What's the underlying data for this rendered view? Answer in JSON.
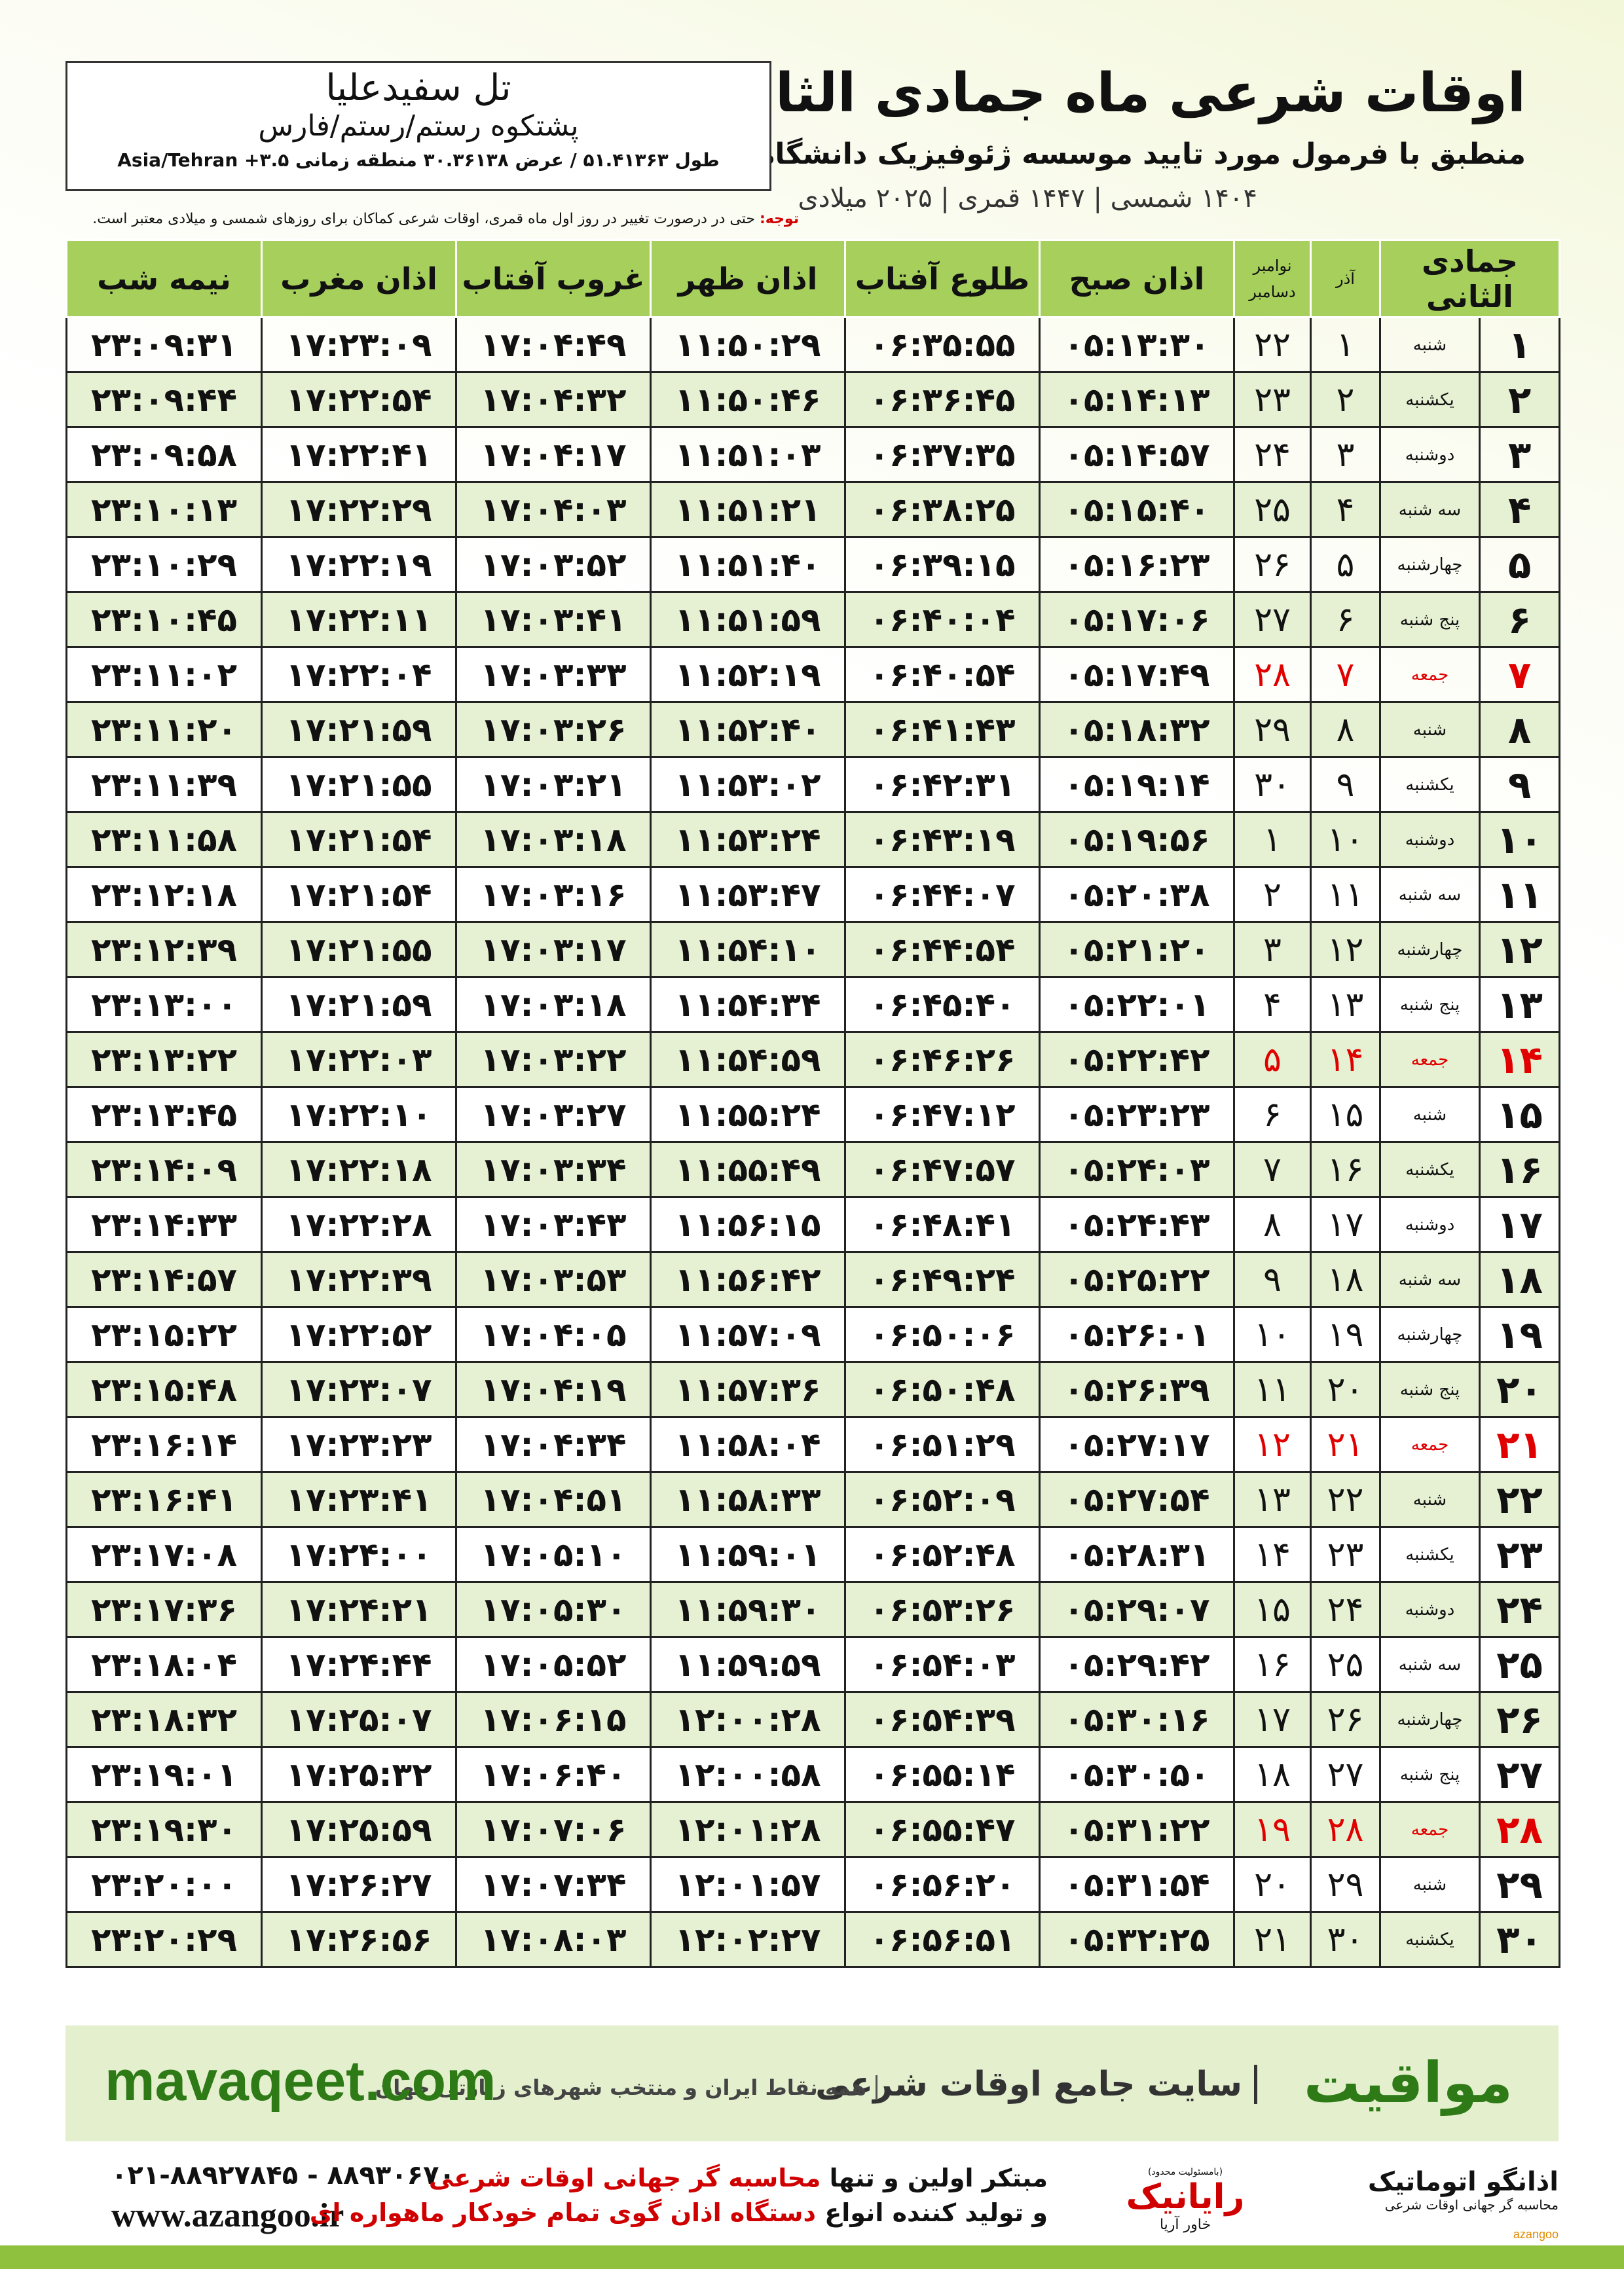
{
  "header": {
    "title": "اوقات شرعی ماه جمادی الثانی",
    "subtitle": "منطبق با فرمول مورد تایید موسسه ژئوفیزیک دانشگاه تهران",
    "dates": "۱۴۰۴ شمسی | ۱۴۴۷ قمری | ۲۰۲۵ میلادی"
  },
  "location": {
    "name": "تل سفیدعلیا",
    "region": "پشتکوه رستم/رستم/فارس",
    "coords": "طول ۵۱.۴۱۳۶۳ / عرض ۳۰.۳۶۱۳۸ منطقه زمانی ۳.۵+ Asia/Tehran"
  },
  "note": {
    "label": "توجه:",
    "text": "حتی در درصورت تغییر در روز اول ماه قمری، اوقات شرعی کماکان برای روزهای شمسی و میلادی معتبر است."
  },
  "table": {
    "header": {
      "hijri": "جمادی الثانی",
      "azar": "آذر",
      "gregorian": [
        "نوامبر",
        "دسامبر"
      ],
      "times": [
        "اذان صبح",
        "طلوع آفتاب",
        "اذان ظهر",
        "غروب آفتاب",
        "اذان مغرب",
        "نیمه شب"
      ]
    },
    "rows": [
      [
        "۱",
        "شنبه",
        "۱",
        "۲۲",
        "۰۵:۱۳:۳۰",
        "۰۶:۳۵:۵۵",
        "۱۱:۵۰:۲۹",
        "۱۷:۰۴:۴۹",
        "۱۷:۲۳:۰۹",
        "۲۳:۰۹:۳۱"
      ],
      [
        "۲",
        "یکشنبه",
        "۲",
        "۲۳",
        "۰۵:۱۴:۱۳",
        "۰۶:۳۶:۴۵",
        "۱۱:۵۰:۴۶",
        "۱۷:۰۴:۳۲",
        "۱۷:۲۲:۵۴",
        "۲۳:۰۹:۴۴"
      ],
      [
        "۳",
        "دوشنبه",
        "۳",
        "۲۴",
        "۰۵:۱۴:۵۷",
        "۰۶:۳۷:۳۵",
        "۱۱:۵۱:۰۳",
        "۱۷:۰۴:۱۷",
        "۱۷:۲۲:۴۱",
        "۲۳:۰۹:۵۸"
      ],
      [
        "۴",
        "سه شنبه",
        "۴",
        "۲۵",
        "۰۵:۱۵:۴۰",
        "۰۶:۳۸:۲۵",
        "۱۱:۵۱:۲۱",
        "۱۷:۰۴:۰۳",
        "۱۷:۲۲:۲۹",
        "۲۳:۱۰:۱۳"
      ],
      [
        "۵",
        "چهارشنبه",
        "۵",
        "۲۶",
        "۰۵:۱۶:۲۳",
        "۰۶:۳۹:۱۵",
        "۱۱:۵۱:۴۰",
        "۱۷:۰۳:۵۲",
        "۱۷:۲۲:۱۹",
        "۲۳:۱۰:۲۹"
      ],
      [
        "۶",
        "پنج شنبه",
        "۶",
        "۲۷",
        "۰۵:۱۷:۰۶",
        "۰۶:۴۰:۰۴",
        "۱۱:۵۱:۵۹",
        "۱۷:۰۳:۴۱",
        "۱۷:۲۲:۱۱",
        "۲۳:۱۰:۴۵"
      ],
      [
        "۷",
        "جمعه",
        "۷",
        "۲۸",
        "۰۵:۱۷:۴۹",
        "۰۶:۴۰:۵۴",
        "۱۱:۵۲:۱۹",
        "۱۷:۰۳:۳۳",
        "۱۷:۲۲:۰۴",
        "۲۳:۱۱:۰۲"
      ],
      [
        "۸",
        "شنبه",
        "۸",
        "۲۹",
        "۰۵:۱۸:۳۲",
        "۰۶:۴۱:۴۳",
        "۱۱:۵۲:۴۰",
        "۱۷:۰۳:۲۶",
        "۱۷:۲۱:۵۹",
        "۲۳:۱۱:۲۰"
      ],
      [
        "۹",
        "یکشنبه",
        "۹",
        "۳۰",
        "۰۵:۱۹:۱۴",
        "۰۶:۴۲:۳۱",
        "۱۱:۵۳:۰۲",
        "۱۷:۰۳:۲۱",
        "۱۷:۲۱:۵۵",
        "۲۳:۱۱:۳۹"
      ],
      [
        "۱۰",
        "دوشنبه",
        "۱۰",
        "۱",
        "۰۵:۱۹:۵۶",
        "۰۶:۴۳:۱۹",
        "۱۱:۵۳:۲۴",
        "۱۷:۰۳:۱۸",
        "۱۷:۲۱:۵۴",
        "۲۳:۱۱:۵۸"
      ],
      [
        "۱۱",
        "سه شنبه",
        "۱۱",
        "۲",
        "۰۵:۲۰:۳۸",
        "۰۶:۴۴:۰۷",
        "۱۱:۵۳:۴۷",
        "۱۷:۰۳:۱۶",
        "۱۷:۲۱:۵۴",
        "۲۳:۱۲:۱۸"
      ],
      [
        "۱۲",
        "چهارشنبه",
        "۱۲",
        "۳",
        "۰۵:۲۱:۲۰",
        "۰۶:۴۴:۵۴",
        "۱۱:۵۴:۱۰",
        "۱۷:۰۳:۱۷",
        "۱۷:۲۱:۵۵",
        "۲۳:۱۲:۳۹"
      ],
      [
        "۱۳",
        "پنج شنبه",
        "۱۳",
        "۴",
        "۰۵:۲۲:۰۱",
        "۰۶:۴۵:۴۰",
        "۱۱:۵۴:۳۴",
        "۱۷:۰۳:۱۸",
        "۱۷:۲۱:۵۹",
        "۲۳:۱۳:۰۰"
      ],
      [
        "۱۴",
        "جمعه",
        "۱۴",
        "۵",
        "۰۵:۲۲:۴۲",
        "۰۶:۴۶:۲۶",
        "۱۱:۵۴:۵۹",
        "۱۷:۰۳:۲۲",
        "۱۷:۲۲:۰۳",
        "۲۳:۱۳:۲۲"
      ],
      [
        "۱۵",
        "شنبه",
        "۱۵",
        "۶",
        "۰۵:۲۳:۲۳",
        "۰۶:۴۷:۱۲",
        "۱۱:۵۵:۲۴",
        "۱۷:۰۳:۲۷",
        "۱۷:۲۲:۱۰",
        "۲۳:۱۳:۴۵"
      ],
      [
        "۱۶",
        "یکشنبه",
        "۱۶",
        "۷",
        "۰۵:۲۴:۰۳",
        "۰۶:۴۷:۵۷",
        "۱۱:۵۵:۴۹",
        "۱۷:۰۳:۳۴",
        "۱۷:۲۲:۱۸",
        "۲۳:۱۴:۰۹"
      ],
      [
        "۱۷",
        "دوشنبه",
        "۱۷",
        "۸",
        "۰۵:۲۴:۴۳",
        "۰۶:۴۸:۴۱",
        "۱۱:۵۶:۱۵",
        "۱۷:۰۳:۴۳",
        "۱۷:۲۲:۲۸",
        "۲۳:۱۴:۳۳"
      ],
      [
        "۱۸",
        "سه شنبه",
        "۱۸",
        "۹",
        "۰۵:۲۵:۲۲",
        "۰۶:۴۹:۲۴",
        "۱۱:۵۶:۴۲",
        "۱۷:۰۳:۵۳",
        "۱۷:۲۲:۳۹",
        "۲۳:۱۴:۵۷"
      ],
      [
        "۱۹",
        "چهارشنبه",
        "۱۹",
        "۱۰",
        "۰۵:۲۶:۰۱",
        "۰۶:۵۰:۰۶",
        "۱۱:۵۷:۰۹",
        "۱۷:۰۴:۰۵",
        "۱۷:۲۲:۵۲",
        "۲۳:۱۵:۲۲"
      ],
      [
        "۲۰",
        "پنج شنبه",
        "۲۰",
        "۱۱",
        "۰۵:۲۶:۳۹",
        "۰۶:۵۰:۴۸",
        "۱۱:۵۷:۳۶",
        "۱۷:۰۴:۱۹",
        "۱۷:۲۳:۰۷",
        "۲۳:۱۵:۴۸"
      ],
      [
        "۲۱",
        "جمعه",
        "۲۱",
        "۱۲",
        "۰۵:۲۷:۱۷",
        "۰۶:۵۱:۲۹",
        "۱۱:۵۸:۰۴",
        "۱۷:۰۴:۳۴",
        "۱۷:۲۳:۲۳",
        "۲۳:۱۶:۱۴"
      ],
      [
        "۲۲",
        "شنبه",
        "۲۲",
        "۱۳",
        "۰۵:۲۷:۵۴",
        "۰۶:۵۲:۰۹",
        "۱۱:۵۸:۳۳",
        "۱۷:۰۴:۵۱",
        "۱۷:۲۳:۴۱",
        "۲۳:۱۶:۴۱"
      ],
      [
        "۲۳",
        "یکشنبه",
        "۲۳",
        "۱۴",
        "۰۵:۲۸:۳۱",
        "۰۶:۵۲:۴۸",
        "۱۱:۵۹:۰۱",
        "۱۷:۰۵:۱۰",
        "۱۷:۲۴:۰۰",
        "۲۳:۱۷:۰۸"
      ],
      [
        "۲۴",
        "دوشنبه",
        "۲۴",
        "۱۵",
        "۰۵:۲۹:۰۷",
        "۰۶:۵۳:۲۶",
        "۱۱:۵۹:۳۰",
        "۱۷:۰۵:۳۰",
        "۱۷:۲۴:۲۱",
        "۲۳:۱۷:۳۶"
      ],
      [
        "۲۵",
        "سه شنبه",
        "۲۵",
        "۱۶",
        "۰۵:۲۹:۴۲",
        "۰۶:۵۴:۰۳",
        "۱۱:۵۹:۵۹",
        "۱۷:۰۵:۵۲",
        "۱۷:۲۴:۴۴",
        "۲۳:۱۸:۰۴"
      ],
      [
        "۲۶",
        "چهارشنبه",
        "۲۶",
        "۱۷",
        "۰۵:۳۰:۱۶",
        "۰۶:۵۴:۳۹",
        "۱۲:۰۰:۲۸",
        "۱۷:۰۶:۱۵",
        "۱۷:۲۵:۰۷",
        "۲۳:۱۸:۳۲"
      ],
      [
        "۲۷",
        "پنج شنبه",
        "۲۷",
        "۱۸",
        "۰۵:۳۰:۵۰",
        "۰۶:۵۵:۱۴",
        "۱۲:۰۰:۵۸",
        "۱۷:۰۶:۴۰",
        "۱۷:۲۵:۳۲",
        "۲۳:۱۹:۰۱"
      ],
      [
        "۲۸",
        "جمعه",
        "۲۸",
        "۱۹",
        "۰۵:۳۱:۲۲",
        "۰۶:۵۵:۴۷",
        "۱۲:۰۱:۲۸",
        "۱۷:۰۷:۰۶",
        "۱۷:۲۵:۵۹",
        "۲۳:۱۹:۳۰"
      ],
      [
        "۲۹",
        "شنبه",
        "۲۹",
        "۲۰",
        "۰۵:۳۱:۵۴",
        "۰۶:۵۶:۲۰",
        "۱۲:۰۱:۵۷",
        "۱۷:۰۷:۳۴",
        "۱۷:۲۶:۲۷",
        "۲۳:۲۰:۰۰"
      ],
      [
        "۳۰",
        "یکشنبه",
        "۳۰",
        "۲۱",
        "۰۵:۳۲:۲۵",
        "۰۶:۵۶:۵۱",
        "۱۲:۰۲:۲۷",
        "۱۷:۰۸:۰۳",
        "۱۷:۲۶:۵۶",
        "۲۳:۲۰:۲۹"
      ]
    ]
  },
  "banner": {
    "brand": "مواقیت",
    "site": "سایت جامع اوقات شرعی",
    "desc": "همه نقاط ایران و منتخب شهرهای زیارتی جهان",
    "url": "mavaqeet.com"
  },
  "footer": {
    "phone": "۰۲۱-۸۸۹۲۷۸۴۵ - ۸۸۹۳۰۶۷۰",
    "web": "www.azangoo.ir",
    "line1": [
      "مبتکر اولین و تنها",
      "محاسبه گر جهانی اوقات شرعی"
    ],
    "line2": [
      "و تولید کننده انواع",
      "دستگاه اذان گوی تمام خودکار ماهواره ای"
    ],
    "logo1": {
      "note": "(بامسئولیت محدود)",
      "name": "رایانیک",
      "partner": "خاور آریا"
    },
    "logo2": {
      "name": "اذانگو اتوماتیک",
      "tagline": "محاسبه گر جهانی اوقات شرعی",
      "latin": "azangoo"
    }
  }
}
